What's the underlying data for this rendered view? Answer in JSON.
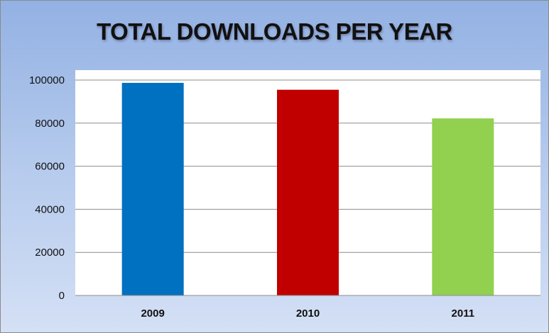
{
  "chart_data": {
    "type": "bar",
    "title": "TOTAL DOWNLOADS PER YEAR",
    "xlabel": "",
    "ylabel": "",
    "categories": [
      "2009",
      "2010",
      "2011"
    ],
    "values": [
      98700,
      95500,
      82200
    ],
    "bar_colors": [
      "#0070c0",
      "#c00000",
      "#92d050"
    ],
    "ylim": [
      0,
      100000
    ],
    "yticks": [
      0,
      20000,
      40000,
      60000,
      80000,
      100000
    ],
    "grid": true,
    "legend": "none"
  }
}
